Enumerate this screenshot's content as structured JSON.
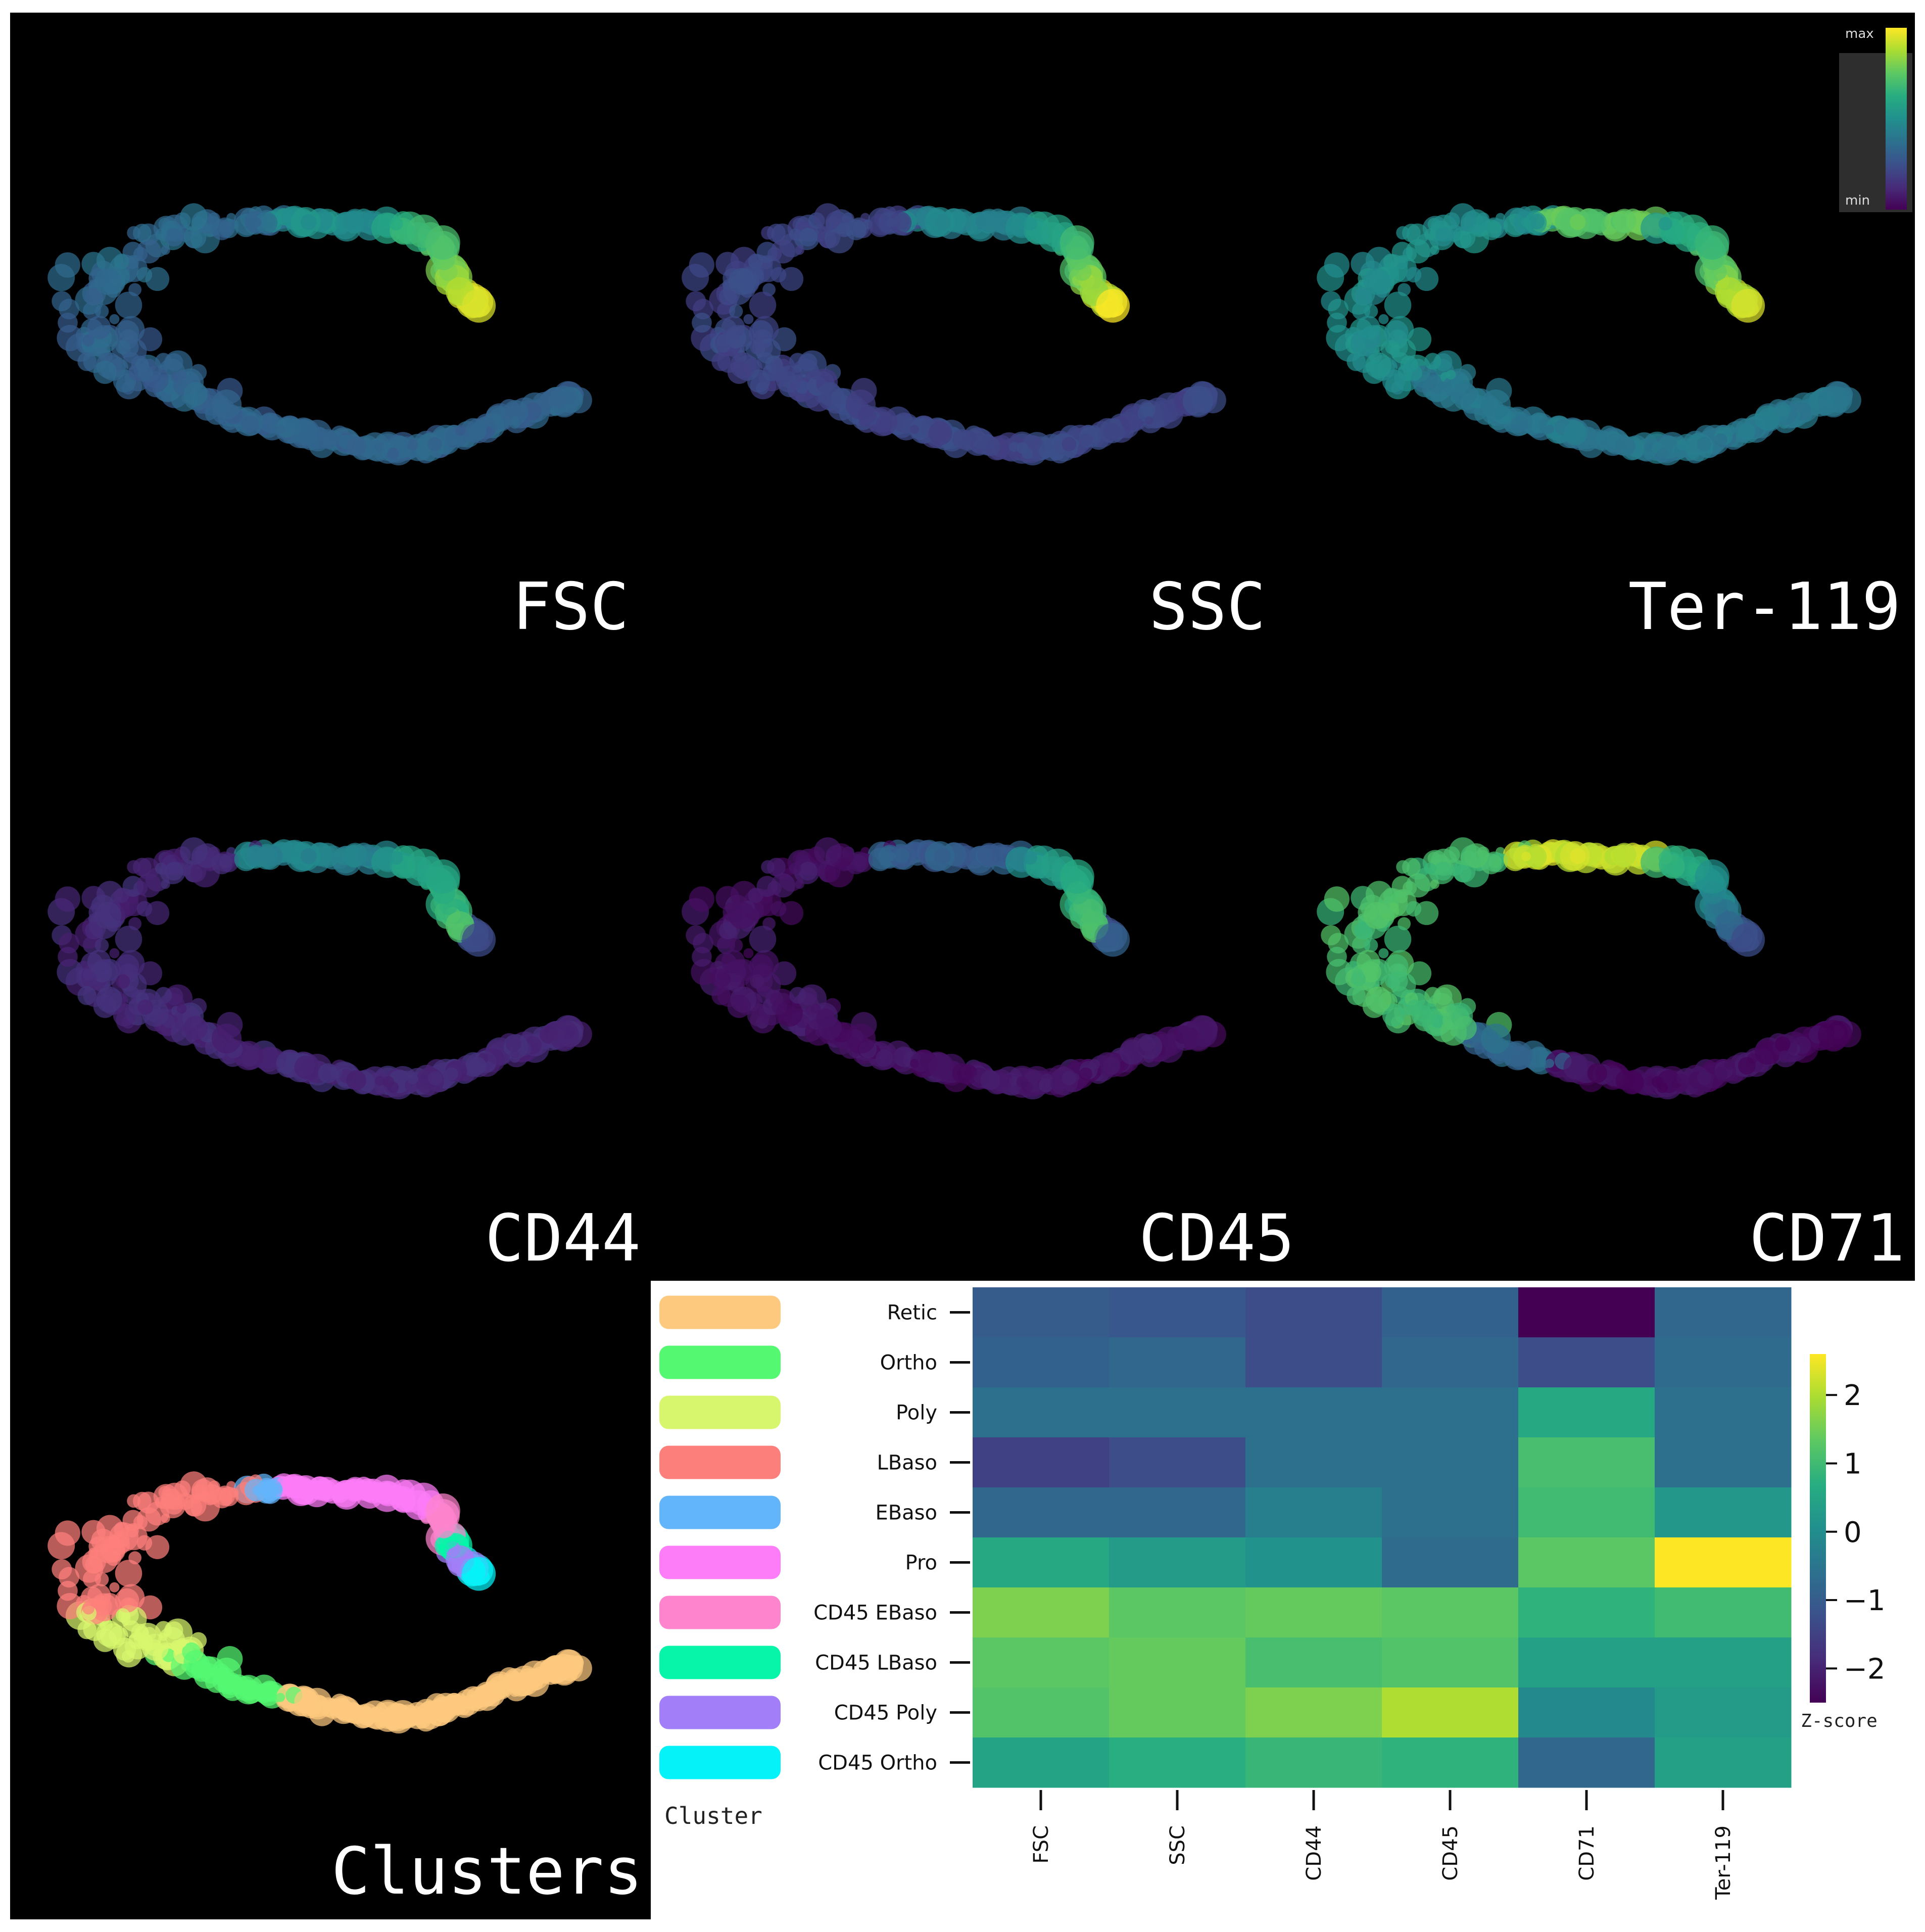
{
  "colorbar_small": {
    "max_label": "max",
    "min_label": "min"
  },
  "panels": [
    {
      "label": "FSC"
    },
    {
      "label": "SSC"
    },
    {
      "label": "Ter-119"
    },
    {
      "label": "CD44"
    },
    {
      "label": "CD45"
    },
    {
      "label": "CD71"
    },
    {
      "label": "Clusters"
    }
  ],
  "clusters": [
    {
      "name": "Retic",
      "color": "#FDC97E"
    },
    {
      "name": "Ortho",
      "color": "#55F871"
    },
    {
      "name": "Poly",
      "color": "#D8F66D"
    },
    {
      "name": "LBaso",
      "color": "#FD7F7B"
    },
    {
      "name": "EBaso",
      "color": "#62B4FB"
    },
    {
      "name": "Pro",
      "color": "#FD7CF8"
    },
    {
      "name": "CD45 EBaso",
      "color": "#FD84CD"
    },
    {
      "name": "CD45 LBaso",
      "color": "#06F5A9"
    },
    {
      "name": "CD45 Poly",
      "color": "#A27EF8"
    },
    {
      "name": "CD45 Ortho",
      "color": "#05F3F8"
    }
  ],
  "legend_title": "Cluster",
  "chart_data": {
    "type": "heatmap",
    "rows": [
      "Retic",
      "Ortho",
      "Poly",
      "LBaso",
      "EBaso",
      "Pro",
      "CD45 EBaso",
      "CD45 LBaso",
      "CD45 Poly",
      "CD45 Ortho"
    ],
    "columns": [
      "FSC",
      "SSC",
      "CD44",
      "CD45",
      "CD71",
      "Ter-119"
    ],
    "values": [
      [
        -1.0,
        -1.1,
        -1.3,
        -0.9,
        -2.5,
        -0.8
      ],
      [
        -0.9,
        -0.8,
        -1.3,
        -0.8,
        -1.3,
        -0.7
      ],
      [
        -0.6,
        -0.6,
        -0.6,
        -0.6,
        0.6,
        -0.6
      ],
      [
        -1.5,
        -1.3,
        -0.6,
        -0.6,
        1.1,
        -0.6
      ],
      [
        -0.8,
        -0.8,
        -0.3,
        -0.6,
        1.0,
        0.2
      ],
      [
        0.6,
        0.3,
        0.1,
        -0.7,
        1.3,
        2.6
      ],
      [
        1.6,
        1.3,
        1.4,
        1.3,
        0.8,
        1.0
      ],
      [
        1.3,
        1.4,
        1.1,
        1.2,
        0.4,
        0.4
      ],
      [
        1.2,
        1.4,
        1.6,
        2.0,
        -0.1,
        0.3
      ],
      [
        0.5,
        0.7,
        0.9,
        0.8,
        -0.8,
        0.4
      ]
    ],
    "vmin": -2.5,
    "vmax": 2.6,
    "colorbar_label": "Z-score",
    "colorbar_ticks": [
      -2,
      -1,
      0,
      1,
      2
    ],
    "colormap": "viridis"
  }
}
